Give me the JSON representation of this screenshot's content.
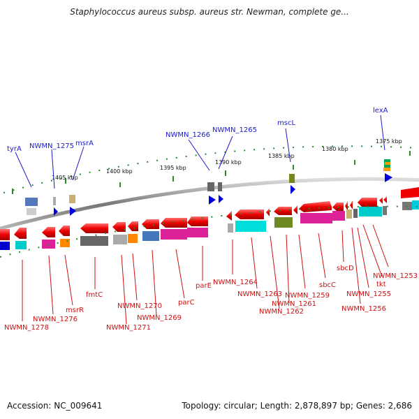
{
  "header": {
    "title": "Staphylococcus aureus subsp. aureus str. Newman, complete ge..."
  },
  "footer": {
    "accession": "Accession: NC_009641",
    "topology": "Topology: circular; Length: 2,878,897 bp; Genes: 2,686"
  },
  "scale_labels": [
    "1405 kbp",
    "1400 kbp",
    "1395 kbp",
    "1390 kbp",
    "1385 kbp",
    "1380 kbp",
    "1375 kbp"
  ],
  "top_labels": [
    "tyrA",
    "NWMN_1275",
    "msrA",
    "NWMN_1266",
    "NWMN_1265",
    "mscL",
    "lexA"
  ],
  "bottom_labels": [
    "NWMN_1278",
    "NWMN_1276",
    "msrR",
    "fmtC",
    "NWMN_1271",
    "NWMN_1270",
    "NWMN_1269",
    "parC",
    "parE",
    "NWMN_1264",
    "NWMN_1263",
    "NWMN_1261",
    "NWMN_1262",
    "NWMN_1259",
    "sbcC",
    "sbcD",
    "NWMN_1256",
    "NWMN_1255",
    "tkt",
    "NWMN_1253"
  ],
  "colors": {
    "gene_red": "#ee0000",
    "label_blue": "#1a1acc",
    "label_red": "#cc1111",
    "backbone": "#777777",
    "tick_green": "#228b22"
  }
}
